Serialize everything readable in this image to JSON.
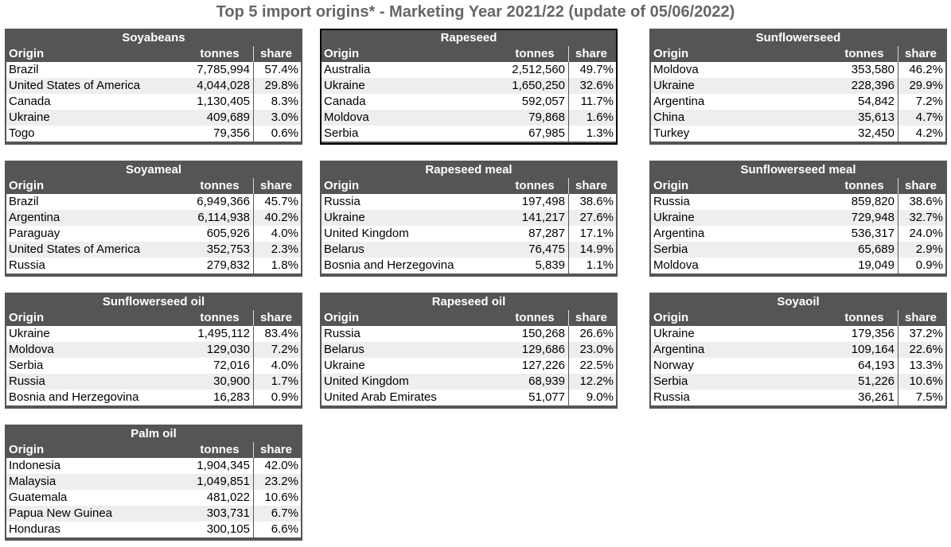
{
  "title": "Top 5 import origins* - Marketing Year 2021/22 (update of 05/06/2022)",
  "columns": {
    "origin": "Origin",
    "tonnes": "tonnes",
    "share": "share"
  },
  "tables": [
    {
      "name": "Soyabeans",
      "rows": [
        [
          "Brazil",
          "7,785,994",
          "57.4%"
        ],
        [
          "United States of America",
          "4,044,028",
          "29.8%"
        ],
        [
          "Canada",
          "1,130,405",
          "8.3%"
        ],
        [
          "Ukraine",
          "409,689",
          "3.0%"
        ],
        [
          "Togo",
          "79,356",
          "0.6%"
        ]
      ]
    },
    {
      "name": "Rapeseed",
      "rows": [
        [
          "Australia",
          "2,512,560",
          "49.7%"
        ],
        [
          "Ukraine",
          "1,650,250",
          "32.6%"
        ],
        [
          "Canada",
          "592,057",
          "11.7%"
        ],
        [
          "Moldova",
          "79,868",
          "1.6%"
        ],
        [
          "Serbia",
          "67,985",
          "1.3%"
        ]
      ]
    },
    {
      "name": "Sunflowerseed",
      "rows": [
        [
          "Moldova",
          "353,580",
          "46.2%"
        ],
        [
          "Ukraine",
          "228,396",
          "29.9%"
        ],
        [
          "Argentina",
          "54,842",
          "7.2%"
        ],
        [
          "China",
          "35,613",
          "4.7%"
        ],
        [
          "Turkey",
          "32,450",
          "4.2%"
        ]
      ]
    },
    {
      "name": "Soyameal",
      "rows": [
        [
          "Brazil",
          "6,949,366",
          "45.7%"
        ],
        [
          "Argentina",
          "6,114,938",
          "40.2%"
        ],
        [
          "Paraguay",
          "605,926",
          "4.0%"
        ],
        [
          "United States of America",
          "352,753",
          "2.3%"
        ],
        [
          "Russia",
          "279,832",
          "1.8%"
        ]
      ]
    },
    {
      "name": "Rapeseed meal",
      "rows": [
        [
          "Russia",
          "197,498",
          "38.6%"
        ],
        [
          "Ukraine",
          "141,217",
          "27.6%"
        ],
        [
          "United Kingdom",
          "87,287",
          "17.1%"
        ],
        [
          "Belarus",
          "76,475",
          "14.9%"
        ],
        [
          "Bosnia and Herzegovina",
          "5,839",
          "1.1%"
        ]
      ]
    },
    {
      "name": "Sunflowerseed meal",
      "rows": [
        [
          "Russia",
          "859,820",
          "38.6%"
        ],
        [
          "Ukraine",
          "729,948",
          "32.7%"
        ],
        [
          "Argentina",
          "536,317",
          "24.0%"
        ],
        [
          "Serbia",
          "65,689",
          "2.9%"
        ],
        [
          "Moldova",
          "19,049",
          "0.9%"
        ]
      ]
    },
    {
      "name": "Sunflowerseed oil",
      "rows": [
        [
          "Ukraine",
          "1,495,112",
          "83.4%"
        ],
        [
          "Moldova",
          "129,030",
          "7.2%"
        ],
        [
          "Serbia",
          "72,016",
          "4.0%"
        ],
        [
          "Russia",
          "30,900",
          "1.7%"
        ],
        [
          "Bosnia and Herzegovina",
          "16,283",
          "0.9%"
        ]
      ]
    },
    {
      "name": "Rapeseed oil",
      "rows": [
        [
          "Russia",
          "150,268",
          "26.6%"
        ],
        [
          "Belarus",
          "129,686",
          "23.0%"
        ],
        [
          "Ukraine",
          "127,226",
          "22.5%"
        ],
        [
          "United Kingdom",
          "68,939",
          "12.2%"
        ],
        [
          "United Arab Emirates",
          "51,077",
          "9.0%"
        ]
      ]
    },
    {
      "name": "Soyaoil",
      "rows": [
        [
          "Ukraine",
          "179,356",
          "37.2%"
        ],
        [
          "Argentina",
          "109,164",
          "22.6%"
        ],
        [
          "Norway",
          "64,193",
          "13.3%"
        ],
        [
          "Serbia",
          "51,226",
          "10.6%"
        ],
        [
          "Russia",
          "36,261",
          "7.5%"
        ]
      ]
    },
    {
      "name": "Palm oil",
      "rows": [
        [
          "Indonesia",
          "1,904,345",
          "42.0%"
        ],
        [
          "Malaysia",
          "1,049,851",
          "23.2%"
        ],
        [
          "Guatemala",
          "481,022",
          "10.6%"
        ],
        [
          "Papua New Guinea",
          "303,731",
          "6.7%"
        ],
        [
          "Honduras",
          "300,105",
          "6.6%"
        ]
      ]
    }
  ]
}
